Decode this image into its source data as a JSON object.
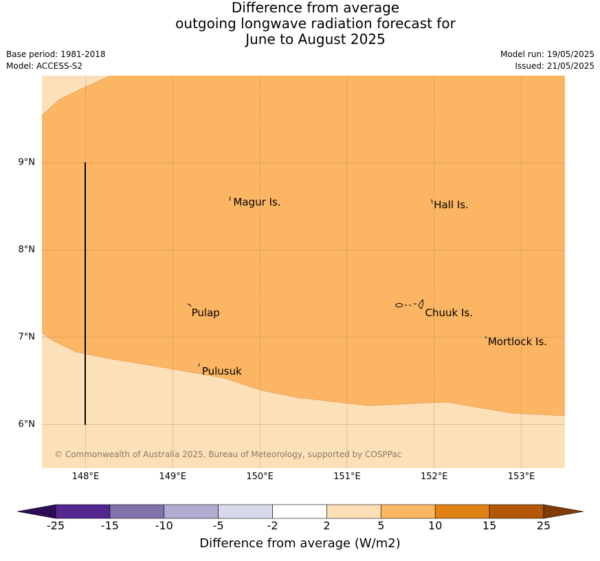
{
  "title": {
    "line1": "Difference from average",
    "line2": "outgoing longwave radiation forecast for",
    "line3": "June to August 2025"
  },
  "meta": {
    "base_period": "Base period: 1981-2018",
    "model": "Model: ACCESS-S2",
    "model_run": "Model run: 19/05/2025",
    "issued": "Issued: 21/05/2025"
  },
  "map": {
    "lon_range": [
      147.5,
      153.5
    ],
    "lat_range": [
      5.5,
      10.0
    ],
    "lat_ticks": [
      {
        "value": 9,
        "label": "9°N"
      },
      {
        "value": 8,
        "label": "8°N"
      },
      {
        "value": 7,
        "label": "7°N"
      },
      {
        "value": 6,
        "label": "6°N"
      }
    ],
    "lon_ticks": [
      {
        "value": 148,
        "label": "148°E"
      },
      {
        "value": 149,
        "label": "149°E"
      },
      {
        "value": 150,
        "label": "150°E"
      },
      {
        "value": 151,
        "label": "151°E"
      },
      {
        "value": 152,
        "label": "152°E"
      },
      {
        "value": 153,
        "label": "153°E"
      }
    ],
    "places": [
      {
        "name": "Magur Is.",
        "lon": 149.68,
        "lat": 8.55
      },
      {
        "name": "Hall Is.",
        "lon": 151.98,
        "lat": 8.52
      },
      {
        "name": "Pulap",
        "lon": 149.2,
        "lat": 7.28
      },
      {
        "name": "Chuuk Is.",
        "lon": 151.88,
        "lat": 7.28
      },
      {
        "name": "Mortlock Is.",
        "lon": 152.6,
        "lat": 6.95
      },
      {
        "name": "Pulusuk",
        "lon": 149.32,
        "lat": 6.61
      }
    ],
    "colors": {
      "band_2_5": "#fce0b8",
      "band_5_10": "#fbb563"
    },
    "copyright": "© Commonwealth of Australia 2025, Bureau of Meteorology, supported by COSPPac"
  },
  "colorbar": {
    "bins": [
      {
        "color": "#2d0c54"
      },
      {
        "color": "#54278f"
      },
      {
        "color": "#8073ac"
      },
      {
        "color": "#b2abd2"
      },
      {
        "color": "#d8daeb"
      },
      {
        "color": "#ffffff"
      },
      {
        "color": "#fee0b6"
      },
      {
        "color": "#fdb863"
      },
      {
        "color": "#e08214"
      },
      {
        "color": "#b35806"
      },
      {
        "color": "#7f3b08"
      }
    ],
    "ticks": [
      "-25",
      "-15",
      "-10",
      "-5",
      "-2",
      "2",
      "5",
      "10",
      "15",
      "25"
    ],
    "label": "Difference from average (W/m2)"
  }
}
